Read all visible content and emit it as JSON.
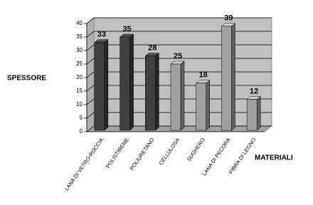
{
  "chart_data": {
    "type": "bar3d",
    "y_label": "SPESSORE",
    "x_label": "MATERIALI",
    "categories": [
      "LANA DI VETRO-ROCCIA",
      "POLISTIRENE",
      "POLIURETANO",
      "CELLULOSA",
      "SUGHERO",
      "LANA DI PECORA",
      "FIBRA DI LEGNO"
    ],
    "values": [
      33,
      35,
      28,
      25,
      18,
      39,
      12
    ],
    "colors": [
      "#404040",
      "#404040",
      "#404040",
      "#a0a0a0",
      "#a0a0a0",
      "#a0a0a0",
      "#a0a0a0"
    ],
    "ylim": [
      0,
      40
    ],
    "yticks": [
      0,
      5,
      10,
      15,
      20,
      25,
      30,
      35,
      40
    ],
    "grid": true
  }
}
